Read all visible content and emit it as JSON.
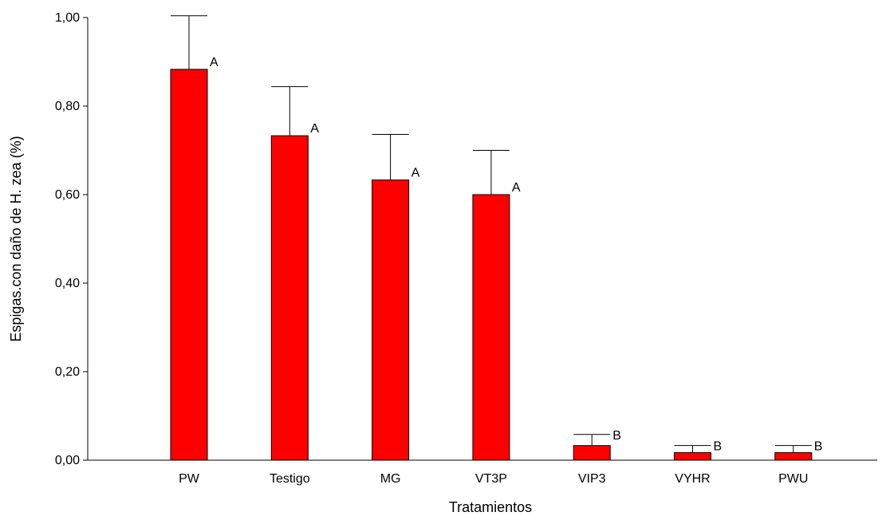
{
  "chart_data": {
    "type": "bar",
    "title": "",
    "xlabel": "Tratamientos",
    "ylabel": "Espigas.con daño de H. zea (%)",
    "ylim": [
      0,
      1.0
    ],
    "yticks": [
      0.0,
      0.2,
      0.4,
      0.6,
      0.8,
      1.0
    ],
    "ytick_labels": [
      "0,00",
      "0,20",
      "0,40",
      "0,60",
      "0,80",
      "1,00"
    ],
    "grid": false,
    "legend": "none",
    "categories": [
      "PW",
      "Testigo",
      "MG",
      "VT3P",
      "VIP3",
      "VYHR",
      "PWU"
    ],
    "values": [
      0.883,
      0.733,
      0.633,
      0.6,
      0.033,
      0.017,
      0.017
    ],
    "error_upper": [
      1.004,
      0.844,
      0.736,
      0.7,
      0.058,
      0.033,
      0.033
    ],
    "letters": [
      "A",
      "A",
      "A",
      "A",
      "B",
      "B",
      "B"
    ],
    "bar_color": "#ff0000"
  }
}
